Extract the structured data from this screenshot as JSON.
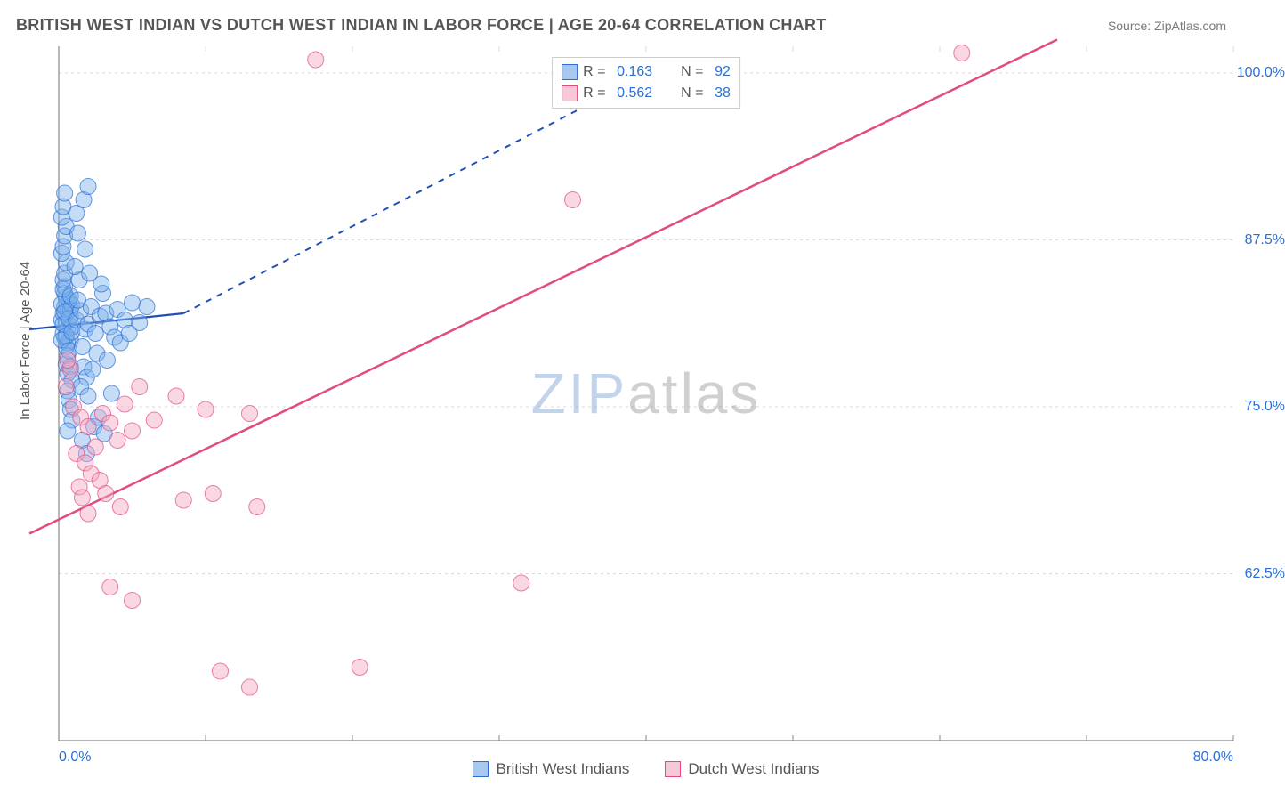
{
  "header": {
    "title": "BRITISH WEST INDIAN VS DUTCH WEST INDIAN IN LABOR FORCE | AGE 20-64 CORRELATION CHART",
    "source": "Source: ZipAtlas.com"
  },
  "watermark": {
    "part1": "ZIP",
    "part2": "atlas"
  },
  "y_axis": {
    "label": "In Labor Force | Age 20-64",
    "min": 50.0,
    "max": 102.0,
    "gridlines": [
      62.5,
      75.0,
      87.5,
      100.0
    ],
    "tick_format_suffix": "%"
  },
  "x_axis": {
    "min": 0.0,
    "max": 80.0,
    "left_label": "0.0%",
    "right_label": "80.0%",
    "ticks": [
      0,
      10,
      20,
      30,
      40,
      50,
      60,
      70,
      80
    ]
  },
  "legend_top": [
    {
      "swatch_fill": "#a9c8ef",
      "swatch_border": "#2b6fd6",
      "r_label": "R =",
      "r_value": "0.163",
      "n_label": "N =",
      "n_value": "92"
    },
    {
      "swatch_fill": "#f7c9d6",
      "swatch_border": "#e24a84",
      "r_label": "R =",
      "r_value": "0.562",
      "n_label": "N =",
      "n_value": "38"
    }
  ],
  "legend_bottom": [
    {
      "swatch_fill": "#a9c8ef",
      "swatch_border": "#2b6fd6",
      "label": "British West Indians"
    },
    {
      "swatch_fill": "#f7c9d6",
      "swatch_border": "#e24a84",
      "label": "Dutch West Indians"
    }
  ],
  "chart": {
    "type": "scatter",
    "background_color": "#ffffff",
    "grid_color": "#d9d9d9",
    "axis_color": "#888888",
    "marker_radius": 9,
    "marker_opacity": 0.45,
    "series": [
      {
        "name": "British West Indians",
        "fill": "#7fb2ea",
        "stroke": "#2b6fd6",
        "trend": {
          "x1": -2,
          "y1": 80.8,
          "x2": 8.5,
          "y2": 82.0,
          "dashed": false,
          "width": 2.2,
          "color": "#1f4fb5",
          "ext_x2": 42,
          "ext_y2": 101.0,
          "ext_dashed": true
        },
        "points": [
          [
            0.2,
            81.5
          ],
          [
            0.3,
            82.0
          ],
          [
            0.5,
            81.3
          ],
          [
            0.4,
            82.5
          ],
          [
            0.6,
            80.8
          ],
          [
            0.8,
            81.8
          ],
          [
            0.4,
            80.2
          ],
          [
            0.7,
            82.8
          ],
          [
            0.3,
            80.5
          ],
          [
            0.5,
            83.2
          ],
          [
            0.9,
            81.0
          ],
          [
            0.6,
            82.2
          ],
          [
            0.4,
            83.5
          ],
          [
            0.8,
            80.0
          ],
          [
            0.2,
            82.7
          ],
          [
            0.5,
            79.5
          ],
          [
            0.7,
            83.0
          ],
          [
            0.3,
            81.2
          ],
          [
            0.6,
            79.8
          ],
          [
            0.4,
            84.0
          ],
          [
            0.8,
            82.3
          ],
          [
            0.5,
            80.3
          ],
          [
            0.9,
            82.6
          ],
          [
            0.3,
            83.8
          ],
          [
            0.6,
            78.8
          ],
          [
            0.7,
            81.6
          ],
          [
            0.4,
            82.1
          ],
          [
            0.2,
            80.0
          ],
          [
            0.8,
            83.3
          ],
          [
            0.5,
            78.2
          ],
          [
            0.9,
            80.6
          ],
          [
            0.3,
            84.5
          ],
          [
            0.6,
            77.5
          ],
          [
            0.4,
            85.0
          ],
          [
            0.7,
            79.2
          ],
          [
            0.5,
            85.8
          ],
          [
            0.8,
            78.0
          ],
          [
            0.2,
            86.5
          ],
          [
            0.9,
            77.0
          ],
          [
            0.3,
            87.0
          ],
          [
            0.6,
            76.2
          ],
          [
            0.4,
            87.8
          ],
          [
            0.7,
            75.5
          ],
          [
            0.5,
            88.5
          ],
          [
            0.8,
            74.8
          ],
          [
            0.2,
            89.2
          ],
          [
            0.9,
            74.0
          ],
          [
            0.3,
            90.0
          ],
          [
            0.6,
            73.2
          ],
          [
            0.4,
            91.0
          ],
          [
            1.2,
            81.5
          ],
          [
            1.5,
            82.2
          ],
          [
            1.8,
            80.8
          ],
          [
            1.3,
            83.0
          ],
          [
            1.6,
            79.5
          ],
          [
            2.0,
            81.2
          ],
          [
            1.4,
            84.5
          ],
          [
            1.7,
            78.0
          ],
          [
            2.2,
            82.5
          ],
          [
            1.9,
            77.2
          ],
          [
            2.5,
            80.5
          ],
          [
            1.1,
            85.5
          ],
          [
            2.8,
            81.8
          ],
          [
            1.5,
            76.5
          ],
          [
            3.2,
            82.0
          ],
          [
            1.8,
            86.8
          ],
          [
            2.0,
            75.8
          ],
          [
            3.5,
            81.0
          ],
          [
            1.3,
            88.0
          ],
          [
            2.3,
            77.8
          ],
          [
            4.0,
            82.3
          ],
          [
            1.6,
            72.5
          ],
          [
            2.6,
            79.0
          ],
          [
            3.0,
            83.5
          ],
          [
            1.9,
            71.5
          ],
          [
            3.8,
            80.2
          ],
          [
            2.1,
            85.0
          ],
          [
            4.5,
            81.5
          ],
          [
            2.4,
            73.5
          ],
          [
            1.2,
            89.5
          ],
          [
            3.3,
            78.5
          ],
          [
            5.0,
            82.8
          ],
          [
            2.7,
            74.2
          ],
          [
            1.7,
            90.5
          ],
          [
            4.2,
            79.8
          ],
          [
            2.9,
            84.2
          ],
          [
            5.5,
            81.3
          ],
          [
            3.6,
            76.0
          ],
          [
            2.0,
            91.5
          ],
          [
            4.8,
            80.5
          ],
          [
            3.1,
            73.0
          ],
          [
            6.0,
            82.5
          ]
        ]
      },
      {
        "name": "Dutch West Indians",
        "fill": "#f4a9c2",
        "stroke": "#e24a84",
        "trend": {
          "x1": -2,
          "y1": 65.5,
          "x2": 68,
          "y2": 102.5,
          "dashed": false,
          "width": 2.5,
          "color": "#e24a84"
        },
        "points": [
          [
            0.5,
            76.5
          ],
          [
            1.0,
            75.0
          ],
          [
            1.5,
            74.2
          ],
          [
            2.0,
            73.5
          ],
          [
            0.8,
            77.8
          ],
          [
            2.5,
            72.0
          ],
          [
            1.2,
            71.5
          ],
          [
            3.0,
            74.5
          ],
          [
            1.8,
            70.8
          ],
          [
            3.5,
            73.8
          ],
          [
            0.6,
            78.5
          ],
          [
            4.0,
            72.5
          ],
          [
            2.2,
            70.0
          ],
          [
            4.5,
            75.2
          ],
          [
            1.4,
            69.0
          ],
          [
            5.0,
            73.2
          ],
          [
            2.8,
            69.5
          ],
          [
            5.5,
            76.5
          ],
          [
            1.6,
            68.2
          ],
          [
            6.5,
            74.0
          ],
          [
            3.2,
            68.5
          ],
          [
            8.0,
            75.8
          ],
          [
            2.0,
            67.0
          ],
          [
            10.0,
            74.8
          ],
          [
            4.2,
            67.5
          ],
          [
            13.0,
            74.5
          ],
          [
            3.5,
            61.5
          ],
          [
            5.0,
            60.5
          ],
          [
            8.5,
            68.0
          ],
          [
            10.5,
            68.5
          ],
          [
            13.5,
            67.5
          ],
          [
            11.0,
            55.2
          ],
          [
            13.0,
            54.0
          ],
          [
            20.5,
            55.5
          ],
          [
            17.5,
            101.0
          ],
          [
            35.0,
            90.5
          ],
          [
            31.5,
            61.8
          ],
          [
            61.5,
            101.5
          ]
        ]
      }
    ]
  }
}
